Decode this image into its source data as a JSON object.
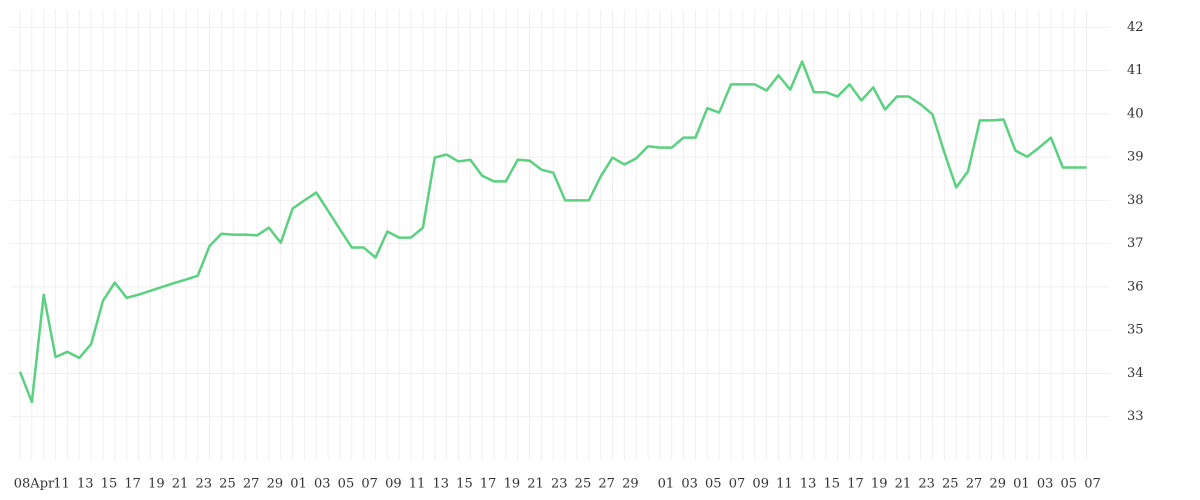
{
  "chart_data": {
    "type": "line",
    "categories": [
      "08Apr",
      null,
      null,
      "11",
      null,
      "13",
      null,
      "15",
      null,
      "17",
      null,
      "19",
      null,
      "21",
      null,
      "23",
      null,
      "25",
      null,
      "27",
      null,
      "29",
      null,
      "01",
      null,
      "03",
      null,
      "05",
      null,
      "07",
      null,
      "09",
      null,
      "11",
      null,
      "13",
      null,
      "15",
      null,
      "17",
      null,
      "19",
      null,
      "21",
      null,
      "23",
      null,
      "25",
      null,
      "27",
      null,
      "29",
      null,
      null,
      "01",
      null,
      "03",
      null,
      "05",
      null,
      "07",
      null,
      "09",
      null,
      "11",
      null,
      "13",
      null,
      "15",
      null,
      "17",
      null,
      "19",
      null,
      "21",
      null,
      "23",
      null,
      "25",
      null,
      "27",
      null,
      "29",
      null,
      "01",
      null,
      "03",
      null,
      "05",
      null,
      "07"
    ],
    "series": [
      {
        "color": "#5ad17f",
        "values": [
          34.04,
          33.34,
          35.82,
          34.38,
          34.5,
          34.36,
          34.68,
          35.68,
          36.1,
          35.75,
          35.82,
          35.91,
          36.0,
          36.09,
          36.17,
          36.26,
          36.95,
          37.23,
          37.21,
          37.21,
          37.19,
          37.37,
          37.02,
          37.81,
          38.0,
          38.18,
          37.76,
          37.33,
          36.91,
          36.91,
          36.68,
          37.28,
          37.14,
          37.14,
          37.37,
          38.99,
          39.06,
          38.9,
          38.94,
          38.57,
          38.44,
          38.44,
          38.94,
          38.92,
          38.71,
          38.64,
          38.0,
          38.0,
          38.0,
          38.55,
          38.99,
          38.83,
          38.97,
          39.25,
          39.22,
          39.22,
          39.45,
          39.45,
          40.13,
          40.03,
          40.68,
          40.68,
          40.68,
          40.54,
          40.89,
          40.56,
          41.21,
          40.5,
          40.5,
          40.4,
          40.68,
          40.31,
          40.61,
          40.1,
          40.4,
          40.4,
          40.22,
          39.99,
          39.11,
          38.3,
          38.67,
          39.85,
          39.85,
          39.87,
          39.15,
          39.01,
          39.22,
          39.45,
          38.76,
          38.76,
          38.76
        ]
      }
    ],
    "ylim": [
      32,
      42.4
    ],
    "yticks": [
      33,
      34,
      35,
      36,
      37,
      38,
      39,
      40,
      41,
      42
    ],
    "grid": true
  }
}
